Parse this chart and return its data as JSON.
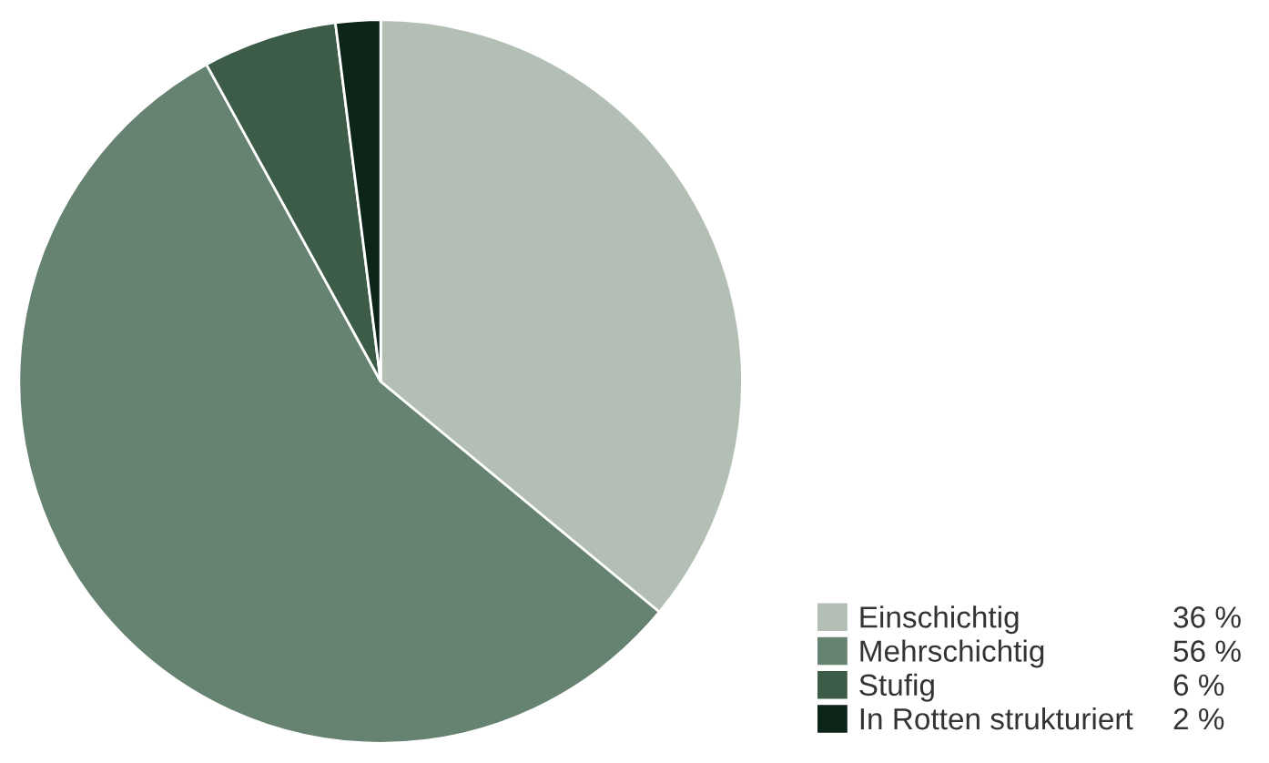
{
  "chart_data": {
    "type": "pie",
    "categories": [
      "Einschichtig",
      "Mehrschichtig",
      "Stufig",
      "In Rotten strukturiert"
    ],
    "values": [
      36,
      56,
      6,
      2
    ],
    "value_labels": [
      "36 %",
      "56 %",
      "6 %",
      "2 %"
    ],
    "colors": [
      "#b3bfb4",
      "#668270",
      "#3d5c48",
      "#0d2419"
    ],
    "legend": "bottom right"
  }
}
